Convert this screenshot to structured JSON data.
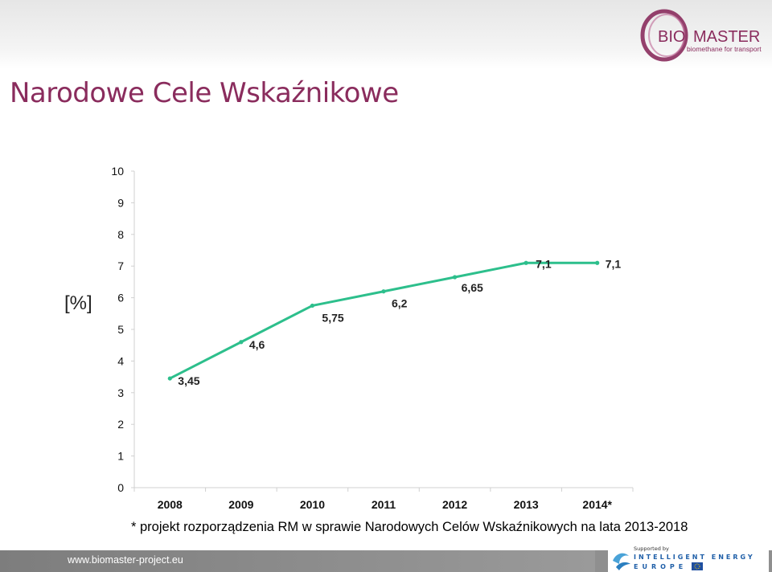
{
  "brand": {
    "logo_text_left": "BIO",
    "logo_text_right": "MASTER",
    "logo_tagline": "biomethane for transport",
    "logo_colors": {
      "ring": "#8a2c5d",
      "text": "#8a2c5d"
    }
  },
  "page": {
    "title": "Narodowe Cele Wskaźnikowe",
    "title_color": "#8a2c5d",
    "unit_label": "[%]",
    "footnote": "* projekt rozporządzenia RM w sprawie Narodowych Celów Wskaźnikowych na lata 2013-2018"
  },
  "footer": {
    "website": "www.biomaster-project.eu",
    "supported_by": "Supported by",
    "program_line1": "INTELLIGENT ENERGY",
    "program_line2": "EUROPE"
  },
  "chart_data": {
    "type": "line",
    "categories": [
      "2008",
      "2009",
      "2010",
      "2011",
      "2012",
      "2013",
      "2014*"
    ],
    "series": [
      {
        "values": [
          3.45,
          4.6,
          5.75,
          6.2,
          6.65,
          7.1,
          7.1
        ],
        "color": "#2dbf8c"
      }
    ],
    "data_labels": [
      "3,45",
      "4,6",
      "5,75",
      "6,2",
      "6,65",
      "7,1",
      "7,1"
    ],
    "yticks": [
      "0",
      "1",
      "2",
      "3",
      "4",
      "5",
      "6",
      "7",
      "8",
      "9",
      "10"
    ],
    "ylim": [
      0,
      10
    ],
    "grid": false,
    "xlabel": "",
    "ylabel": "[%]"
  }
}
